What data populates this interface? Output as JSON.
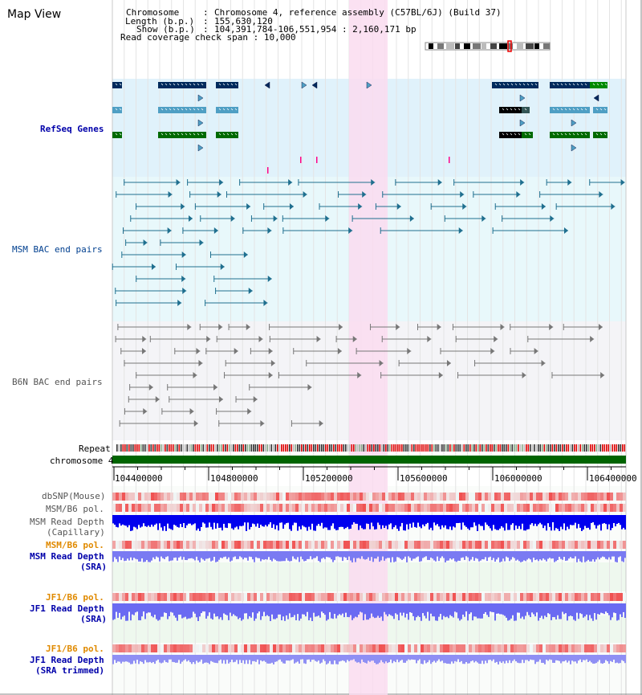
{
  "page": {
    "title": "Map View",
    "info": {
      "chromosome_label": "Chromosome",
      "chromosome_value": "Chromosome 4, reference assembly (C57BL/6J) (Build 37)",
      "length_label": "Length (b.p.)",
      "length_value": "155,630,120",
      "show_label": "Show (b.p.)",
      "show_value": "104,391,784-106,551,954 : 2,160,171 bp",
      "coverage_label": "Read coverage check span",
      "coverage_value": "10,000"
    }
  },
  "tracks": {
    "refseq": "RefSeq Genes",
    "msm_bac": "MSM BAC end pairs",
    "b6n_bac": "B6N BAC end pairs",
    "repeat": "Repeat",
    "chromosome": "chromosome 4",
    "dbsnp": "dbSNP(Mouse)",
    "msm_pol": "MSM/B6 pol.",
    "msm_depth_cap_1": "MSM Read Depth",
    "msm_depth_cap_2": "(Capillary)",
    "msm_pol_sra": "MSM/B6 pol.",
    "msm_depth_sra_1": "MSM Read Depth",
    "msm_depth_sra_2": "(SRA)",
    "jf1_pol_1": "JF1/B6 pol.",
    "jf1_depth_1": "JF1 Read Depth",
    "jf1_depth_1b": "(SRA)",
    "jf1_pol_2": "JF1/B6 pol.",
    "jf1_depth_2": "JF1 Read Depth",
    "jf1_depth_2b": "(SRA trimmed)"
  },
  "axis": {
    "ticks": [
      "104400000",
      "104800000",
      "105200000",
      "105600000",
      "106000000",
      "106400000"
    ]
  },
  "colors": {
    "refseq_bg": "#e0f2fb",
    "msm_bg": "#e8f8fb",
    "b6n_bg": "#f4f4f7",
    "highlight": "#fadcf0",
    "chromosome": "#006400",
    "refseq_navy": "#002a5c",
    "refseq_light": "#4f9fc4",
    "refseq_green": "#006a00"
  }
}
